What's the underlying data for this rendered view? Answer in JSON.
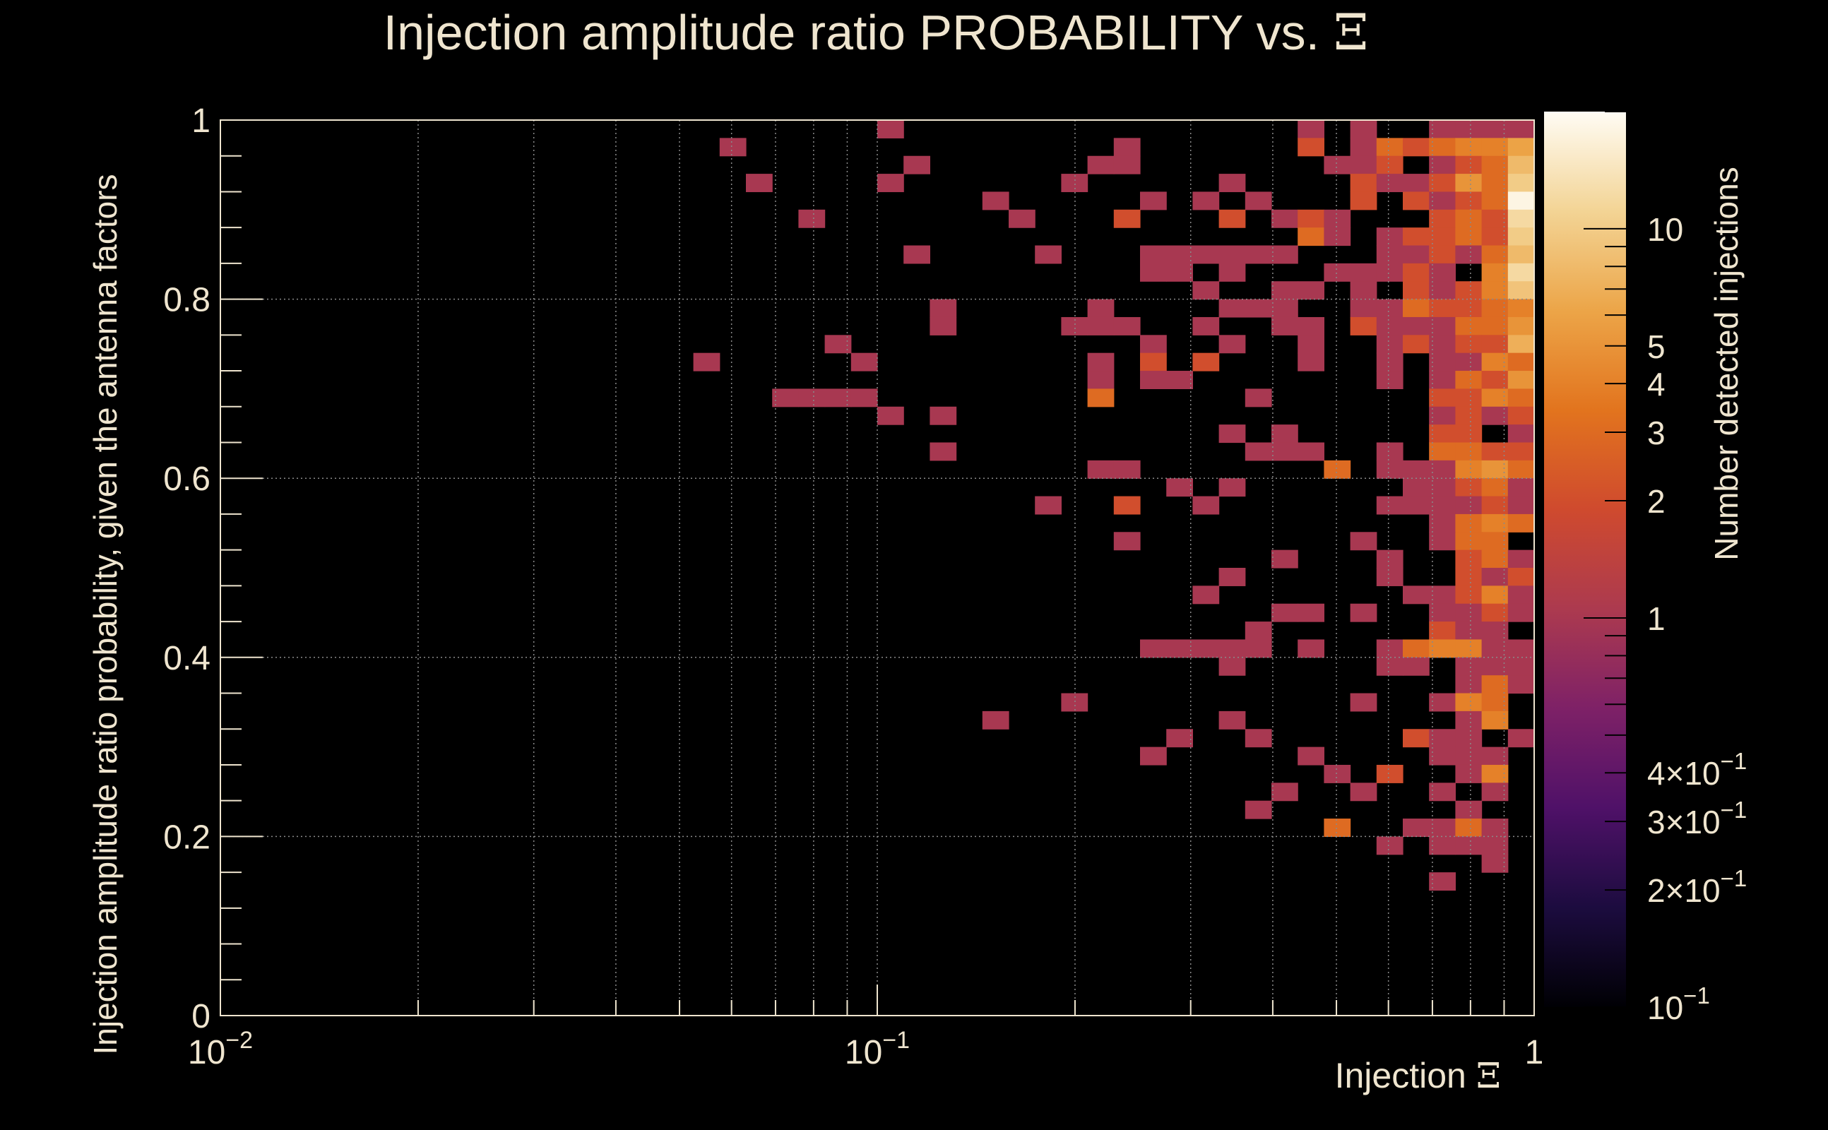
{
  "chart_data": {
    "type": "heatmap",
    "title": "Injection amplitude ratio PROBABILITY vs.",
    "title_symbol": "Ξ",
    "xlabel": "Injection",
    "xlabel_symbol": "Ξ",
    "ylabel": "Injection amplitude ratio probability, given the antenna factors",
    "zlabel": "Number detected injections",
    "x_scale": "log",
    "xlim": [
      0.01,
      1
    ],
    "ylim": [
      0,
      1
    ],
    "z_scale": "log",
    "zlim": [
      0.1,
      20
    ],
    "grid": true,
    "x_ticks": [
      {
        "value": 0.01,
        "label": "10",
        "exp": "−2"
      },
      {
        "value": 0.1,
        "label": "10",
        "exp": "−1"
      },
      {
        "value": 1,
        "label": "1",
        "exp": ""
      }
    ],
    "y_ticks": [
      {
        "value": 0,
        "label": "0"
      },
      {
        "value": 0.2,
        "label": "0.2"
      },
      {
        "value": 0.4,
        "label": "0.4"
      },
      {
        "value": 0.6,
        "label": "0.6"
      },
      {
        "value": 0.8,
        "label": "0.8"
      },
      {
        "value": 1,
        "label": "1"
      }
    ],
    "z_ticks": [
      {
        "value": 0.1,
        "label": "10",
        "exp": "−1"
      },
      {
        "value": 0.2,
        "label": "2×10",
        "exp": "−1"
      },
      {
        "value": 0.3,
        "label": "3×10",
        "exp": "−1"
      },
      {
        "value": 0.4,
        "label": "4×10",
        "exp": "−1"
      },
      {
        "value": 1,
        "label": "1",
        "exp": ""
      },
      {
        "value": 2,
        "label": "2",
        "exp": ""
      },
      {
        "value": 3,
        "label": "3",
        "exp": ""
      },
      {
        "value": 4,
        "label": "4",
        "exp": ""
      },
      {
        "value": 5,
        "label": "5",
        "exp": ""
      },
      {
        "value": 10,
        "label": "10",
        "exp": ""
      }
    ],
    "colormap": [
      "#000004",
      "#1c0c3f",
      "#4f1168",
      "#7e2167",
      "#ac3a4f",
      "#cf4a2e",
      "#e2741e",
      "#eca548",
      "#f3d495",
      "#fffcf4"
    ],
    "bins": {
      "nx": 50,
      "ny": 50
    },
    "cells": [
      [
        25,
        49,
        1
      ],
      [
        41,
        49,
        1
      ],
      [
        43,
        49,
        1
      ],
      [
        46,
        49,
        1
      ],
      [
        47,
        49,
        1
      ],
      [
        48,
        49,
        1
      ],
      [
        49,
        49,
        1
      ],
      [
        19,
        48,
        1
      ],
      [
        34,
        48,
        1
      ],
      [
        41,
        48,
        2
      ],
      [
        43,
        48,
        1
      ],
      [
        44,
        48,
        3
      ],
      [
        45,
        48,
        2
      ],
      [
        46,
        48,
        3
      ],
      [
        47,
        48,
        4
      ],
      [
        48,
        48,
        4
      ],
      [
        49,
        48,
        6
      ],
      [
        26,
        47,
        1
      ],
      [
        33,
        47,
        1
      ],
      [
        34,
        47,
        1
      ],
      [
        42,
        47,
        1
      ],
      [
        43,
        47,
        1
      ],
      [
        44,
        47,
        2
      ],
      [
        46,
        47,
        1
      ],
      [
        47,
        47,
        2
      ],
      [
        48,
        47,
        3
      ],
      [
        49,
        47,
        8
      ],
      [
        20,
        46,
        1
      ],
      [
        25,
        46,
        1
      ],
      [
        32,
        46,
        1
      ],
      [
        38,
        46,
        1
      ],
      [
        43,
        46,
        2
      ],
      [
        44,
        46,
        1
      ],
      [
        45,
        46,
        1
      ],
      [
        46,
        46,
        2
      ],
      [
        47,
        46,
        5
      ],
      [
        48,
        46,
        3
      ],
      [
        49,
        46,
        10
      ],
      [
        29,
        45,
        1
      ],
      [
        35,
        45,
        1
      ],
      [
        37,
        45,
        1
      ],
      [
        39,
        45,
        1
      ],
      [
        43,
        45,
        2
      ],
      [
        45,
        45,
        2
      ],
      [
        46,
        45,
        1
      ],
      [
        47,
        45,
        2
      ],
      [
        48,
        45,
        3
      ],
      [
        49,
        45,
        18
      ],
      [
        22,
        44,
        1
      ],
      [
        30,
        44,
        1
      ],
      [
        34,
        44,
        2
      ],
      [
        38,
        44,
        2
      ],
      [
        40,
        44,
        1
      ],
      [
        41,
        44,
        2
      ],
      [
        42,
        44,
        1
      ],
      [
        46,
        44,
        2
      ],
      [
        47,
        44,
        3
      ],
      [
        48,
        44,
        2
      ],
      [
        49,
        44,
        12
      ],
      [
        41,
        43,
        3
      ],
      [
        42,
        43,
        1
      ],
      [
        44,
        43,
        1
      ],
      [
        45,
        43,
        2
      ],
      [
        46,
        43,
        2
      ],
      [
        47,
        43,
        3
      ],
      [
        48,
        43,
        2
      ],
      [
        49,
        43,
        10
      ],
      [
        26,
        42,
        1
      ],
      [
        31,
        42,
        1
      ],
      [
        35,
        42,
        1
      ],
      [
        36,
        42,
        1
      ],
      [
        37,
        42,
        1
      ],
      [
        38,
        42,
        1
      ],
      [
        39,
        42,
        1
      ],
      [
        40,
        42,
        1
      ],
      [
        44,
        42,
        1
      ],
      [
        45,
        42,
        1
      ],
      [
        46,
        42,
        2
      ],
      [
        47,
        42,
        1
      ],
      [
        48,
        42,
        3
      ],
      [
        49,
        42,
        8
      ],
      [
        35,
        41,
        1
      ],
      [
        36,
        41,
        1
      ],
      [
        38,
        41,
        1
      ],
      [
        42,
        41,
        1
      ],
      [
        43,
        41,
        1
      ],
      [
        44,
        41,
        1
      ],
      [
        45,
        41,
        2
      ],
      [
        46,
        41,
        1
      ],
      [
        48,
        41,
        4
      ],
      [
        49,
        41,
        12
      ],
      [
        37,
        40,
        1
      ],
      [
        40,
        40,
        1
      ],
      [
        41,
        40,
        1
      ],
      [
        43,
        40,
        1
      ],
      [
        45,
        40,
        2
      ],
      [
        46,
        40,
        1
      ],
      [
        47,
        40,
        2
      ],
      [
        48,
        40,
        4
      ],
      [
        49,
        40,
        9
      ],
      [
        27,
        39,
        1
      ],
      [
        33,
        39,
        1
      ],
      [
        38,
        39,
        1
      ],
      [
        39,
        39,
        1
      ],
      [
        40,
        39,
        1
      ],
      [
        43,
        39,
        1
      ],
      [
        44,
        39,
        1
      ],
      [
        45,
        39,
        3
      ],
      [
        46,
        39,
        2
      ],
      [
        47,
        39,
        2
      ],
      [
        48,
        39,
        3
      ],
      [
        49,
        39,
        4
      ],
      [
        27,
        38,
        1
      ],
      [
        32,
        38,
        1
      ],
      [
        33,
        38,
        1
      ],
      [
        34,
        38,
        1
      ],
      [
        37,
        38,
        1
      ],
      [
        40,
        38,
        1
      ],
      [
        41,
        38,
        1
      ],
      [
        43,
        38,
        2
      ],
      [
        44,
        38,
        1
      ],
      [
        45,
        38,
        1
      ],
      [
        46,
        38,
        1
      ],
      [
        47,
        38,
        3
      ],
      [
        48,
        38,
        3
      ],
      [
        49,
        38,
        5
      ],
      [
        23,
        37,
        1
      ],
      [
        35,
        37,
        1
      ],
      [
        38,
        37,
        1
      ],
      [
        41,
        37,
        1
      ],
      [
        44,
        37,
        1
      ],
      [
        45,
        37,
        2
      ],
      [
        46,
        37,
        1
      ],
      [
        47,
        37,
        2
      ],
      [
        48,
        37,
        2
      ],
      [
        49,
        37,
        7
      ],
      [
        18,
        36,
        1
      ],
      [
        24,
        36,
        1
      ],
      [
        33,
        36,
        1
      ],
      [
        35,
        36,
        2
      ],
      [
        37,
        36,
        2
      ],
      [
        41,
        36,
        1
      ],
      [
        44,
        36,
        1
      ],
      [
        46,
        36,
        1
      ],
      [
        47,
        36,
        1
      ],
      [
        48,
        36,
        4
      ],
      [
        49,
        36,
        3
      ],
      [
        33,
        35,
        1
      ],
      [
        35,
        35,
        1
      ],
      [
        36,
        35,
        1
      ],
      [
        44,
        35,
        1
      ],
      [
        46,
        35,
        1
      ],
      [
        47,
        35,
        3
      ],
      [
        48,
        35,
        2
      ],
      [
        49,
        35,
        5
      ],
      [
        21,
        34,
        1
      ],
      [
        22,
        34,
        1
      ],
      [
        23,
        34,
        1
      ],
      [
        24,
        34,
        1
      ],
      [
        33,
        34,
        3
      ],
      [
        39,
        34,
        1
      ],
      [
        46,
        34,
        2
      ],
      [
        47,
        34,
        2
      ],
      [
        48,
        34,
        4
      ],
      [
        49,
        34,
        3
      ],
      [
        25,
        33,
        1
      ],
      [
        27,
        33,
        1
      ],
      [
        46,
        33,
        1
      ],
      [
        47,
        33,
        2
      ],
      [
        48,
        33,
        1
      ],
      [
        49,
        33,
        2
      ],
      [
        38,
        32,
        1
      ],
      [
        40,
        32,
        1
      ],
      [
        46,
        32,
        2
      ],
      [
        47,
        32,
        2
      ],
      [
        49,
        32,
        1
      ],
      [
        27,
        31,
        1
      ],
      [
        39,
        31,
        1
      ],
      [
        40,
        31,
        1
      ],
      [
        41,
        31,
        1
      ],
      [
        44,
        31,
        1
      ],
      [
        46,
        31,
        3
      ],
      [
        47,
        31,
        3
      ],
      [
        48,
        31,
        2
      ],
      [
        49,
        31,
        2
      ],
      [
        33,
        30,
        1
      ],
      [
        34,
        30,
        1
      ],
      [
        42,
        30,
        3
      ],
      [
        44,
        30,
        1
      ],
      [
        45,
        30,
        1
      ],
      [
        46,
        30,
        1
      ],
      [
        47,
        30,
        4
      ],
      [
        48,
        30,
        5
      ],
      [
        49,
        30,
        3
      ],
      [
        36,
        29,
        1
      ],
      [
        38,
        29,
        1
      ],
      [
        45,
        29,
        1
      ],
      [
        46,
        29,
        1
      ],
      [
        47,
        29,
        2
      ],
      [
        48,
        29,
        3
      ],
      [
        49,
        29,
        1
      ],
      [
        31,
        28,
        1
      ],
      [
        34,
        28,
        2
      ],
      [
        37,
        28,
        1
      ],
      [
        44,
        28,
        1
      ],
      [
        45,
        28,
        1
      ],
      [
        46,
        28,
        1
      ],
      [
        47,
        28,
        1
      ],
      [
        48,
        28,
        2
      ],
      [
        49,
        28,
        1
      ],
      [
        46,
        27,
        1
      ],
      [
        47,
        27,
        3
      ],
      [
        48,
        27,
        4
      ],
      [
        49,
        27,
        3
      ],
      [
        34,
        26,
        1
      ],
      [
        43,
        26,
        1
      ],
      [
        46,
        26,
        1
      ],
      [
        47,
        26,
        3
      ],
      [
        48,
        26,
        3
      ],
      [
        40,
        25,
        1
      ],
      [
        44,
        25,
        1
      ],
      [
        47,
        25,
        2
      ],
      [
        48,
        25,
        3
      ],
      [
        49,
        25,
        1
      ],
      [
        38,
        24,
        1
      ],
      [
        44,
        24,
        1
      ],
      [
        47,
        24,
        2
      ],
      [
        48,
        24,
        1
      ],
      [
        49,
        24,
        2
      ],
      [
        37,
        23,
        1
      ],
      [
        45,
        23,
        1
      ],
      [
        46,
        23,
        1
      ],
      [
        47,
        23,
        2
      ],
      [
        48,
        23,
        4
      ],
      [
        49,
        23,
        1
      ],
      [
        40,
        22,
        1
      ],
      [
        41,
        22,
        1
      ],
      [
        43,
        22,
        1
      ],
      [
        46,
        22,
        1
      ],
      [
        47,
        22,
        1
      ],
      [
        48,
        22,
        2
      ],
      [
        49,
        22,
        1
      ],
      [
        39,
        21,
        1
      ],
      [
        46,
        21,
        2
      ],
      [
        47,
        21,
        1
      ],
      [
        48,
        21,
        1
      ],
      [
        35,
        20,
        1
      ],
      [
        36,
        20,
        1
      ],
      [
        37,
        20,
        1
      ],
      [
        38,
        20,
        1
      ],
      [
        39,
        20,
        1
      ],
      [
        41,
        20,
        1
      ],
      [
        44,
        20,
        1
      ],
      [
        45,
        20,
        3
      ],
      [
        46,
        20,
        4
      ],
      [
        47,
        20,
        4
      ],
      [
        48,
        20,
        1
      ],
      [
        49,
        20,
        1
      ],
      [
        38,
        19,
        1
      ],
      [
        44,
        19,
        1
      ],
      [
        45,
        19,
        1
      ],
      [
        47,
        19,
        1
      ],
      [
        48,
        19,
        1
      ],
      [
        49,
        19,
        1
      ],
      [
        47,
        18,
        1
      ],
      [
        48,
        18,
        3
      ],
      [
        49,
        18,
        1
      ],
      [
        32,
        17,
        1
      ],
      [
        43,
        17,
        1
      ],
      [
        46,
        17,
        1
      ],
      [
        47,
        17,
        4
      ],
      [
        48,
        17,
        3
      ],
      [
        29,
        16,
        1
      ],
      [
        38,
        16,
        1
      ],
      [
        47,
        16,
        1
      ],
      [
        48,
        16,
        4
      ],
      [
        36,
        15,
        1
      ],
      [
        39,
        15,
        1
      ],
      [
        45,
        15,
        2
      ],
      [
        46,
        15,
        1
      ],
      [
        47,
        15,
        1
      ],
      [
        49,
        15,
        1
      ],
      [
        35,
        14,
        1
      ],
      [
        41,
        14,
        1
      ],
      [
        46,
        14,
        1
      ],
      [
        47,
        14,
        1
      ],
      [
        48,
        14,
        1
      ],
      [
        42,
        13,
        1
      ],
      [
        44,
        13,
        2
      ],
      [
        47,
        13,
        1
      ],
      [
        48,
        13,
        4
      ],
      [
        40,
        12,
        1
      ],
      [
        43,
        12,
        1
      ],
      [
        46,
        12,
        1
      ],
      [
        48,
        12,
        1
      ],
      [
        39,
        11,
        1
      ],
      [
        47,
        11,
        1
      ],
      [
        42,
        10,
        3
      ],
      [
        45,
        10,
        1
      ],
      [
        46,
        10,
        1
      ],
      [
        47,
        10,
        3
      ],
      [
        48,
        10,
        1
      ],
      [
        44,
        9,
        1
      ],
      [
        46,
        9,
        1
      ],
      [
        47,
        9,
        1
      ],
      [
        48,
        9,
        1
      ],
      [
        48,
        8,
        1
      ],
      [
        46,
        7,
        1
      ]
    ]
  }
}
